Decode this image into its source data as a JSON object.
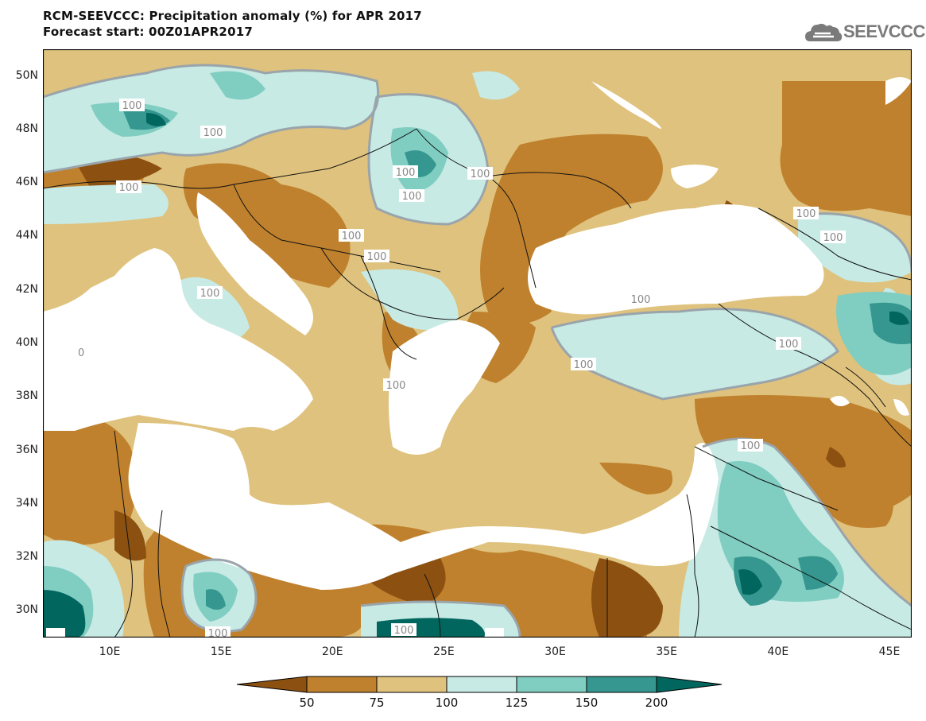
{
  "title": {
    "line1": "RCM-SEEVCCC: Precipitation anomaly (%) for APR 2017",
    "line2": "Forecast start: 00Z01APR2017"
  },
  "logo": {
    "text": "SEEVCCC"
  },
  "map": {
    "lat_range": [
      29,
      51
    ],
    "lon_range": [
      7,
      46
    ],
    "lat_ticks": [
      "50N",
      "48N",
      "46N",
      "44N",
      "42N",
      "40N",
      "38N",
      "36N",
      "34N",
      "32N",
      "30N"
    ],
    "lon_ticks": [
      "10E",
      "15E",
      "20E",
      "25E",
      "30E",
      "35E",
      "40E",
      "45E"
    ],
    "contour_label": "100",
    "edge_label": "0",
    "colors": {
      "below_50": "#8c5111",
      "50_75": "#bf812d",
      "75_100": "#dfc27d",
      "100_125": "#c7eae5",
      "125_150": "#80cdc1",
      "150_200": "#35978f",
      "above_200": "#01665e",
      "sea": "#ffffff",
      "contour": "#9aa4ab",
      "border": "#111111"
    }
  },
  "legend": {
    "labels": [
      "50",
      "75",
      "100",
      "125",
      "150",
      "200"
    ]
  }
}
